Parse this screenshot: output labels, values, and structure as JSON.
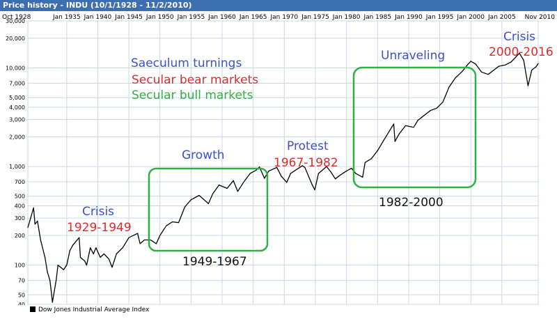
{
  "window": {
    "title": "Price history - INDU (10/1/1928 - 11/2/2010)"
  },
  "colors": {
    "titlebar": "#3c6fb0",
    "grid": "#c8d8ec",
    "line": "#000000",
    "box": "#2fb040",
    "annotation_blue": "#3b4fd0",
    "annotation_red": "#e02a2a",
    "annotation_green": "#2fb040",
    "annotation_black": "#111111"
  },
  "chart_data": {
    "type": "line",
    "title": "",
    "xlabel": "",
    "ylabel": "",
    "yscale": "log",
    "ylim": [
      40,
      30000
    ],
    "xlim": [
      1928.75,
      2010.84
    ],
    "grid": true,
    "x_tick_labels": [
      "Oct 1928",
      "Jan 1935",
      "Jan 1940",
      "Jan 1945",
      "Jan 1950",
      "Jan 1955",
      "Jan 1960",
      "Jan 1965",
      "Jan 1970",
      "Jan 1975",
      "Jan 1980",
      "Jan 1985",
      "Jan 1990",
      "Jan 1995",
      "Jan 2000",
      "Jan 2005",
      "Nov 2010"
    ],
    "x_tick_values": [
      1928.75,
      1935,
      1940,
      1945,
      1950,
      1955,
      1960,
      1965,
      1970,
      1975,
      1980,
      1985,
      1990,
      1995,
      2000,
      2005,
      2010.84
    ],
    "y_tick_labels": [
      "30,000",
      "20,000",
      "10,000",
      "7,000",
      "5,000",
      "4,000",
      "3,000",
      "2,000",
      "1,000",
      "700",
      "500",
      "400",
      "300",
      "200",
      "100",
      "70",
      "50",
      "40"
    ],
    "y_tick_values": [
      30000,
      20000,
      10000,
      7000,
      5000,
      4000,
      3000,
      2000,
      1000,
      700,
      500,
      400,
      300,
      200,
      100,
      70,
      50,
      40
    ],
    "series": [
      {
        "name": "Dow Jones Industrial Average Index",
        "x": [
          1928.75,
          1929.2,
          1929.67,
          1929.9,
          1930.3,
          1930.8,
          1931.5,
          1931.9,
          1932.3,
          1932.5,
          1932.7,
          1933.3,
          1933.6,
          1934.5,
          1935.0,
          1935.5,
          1936.0,
          1937.0,
          1937.2,
          1937.9,
          1938.2,
          1938.8,
          1939.3,
          1939.7,
          1940.4,
          1941.0,
          1941.8,
          1942.3,
          1943.0,
          1944.0,
          1945.0,
          1946.4,
          1946.8,
          1947.5,
          1948.5,
          1949.4,
          1950.0,
          1951.0,
          1952.0,
          1953.0,
          1954.0,
          1955.0,
          1956.3,
          1957.8,
          1958.5,
          1959.5,
          1960.8,
          1961.8,
          1962.5,
          1963.5,
          1964.5,
          1965.5,
          1966.0,
          1966.8,
          1967.5,
          1968.8,
          1969.5,
          1970.4,
          1971.0,
          1972.9,
          1973.3,
          1974.5,
          1974.9,
          1975.5,
          1976.8,
          1977.5,
          1978.2,
          1979.0,
          1980.0,
          1980.8,
          1981.5,
          1982.6,
          1983.0,
          1984.0,
          1985.0,
          1986.0,
          1987.6,
          1987.8,
          1988.5,
          1989.5,
          1990.8,
          1991.5,
          1992.5,
          1993.5,
          1994.5,
          1995.5,
          1996.5,
          1997.5,
          1998.6,
          1999.5,
          2000.0,
          2000.8,
          2001.7,
          2002.8,
          2003.5,
          2004.5,
          2005.5,
          2006.5,
          2007.8,
          2008.5,
          2009.2,
          2009.8,
          2010.5,
          2010.84
        ],
        "y": [
          240,
          300,
          381,
          260,
          280,
          180,
          120,
          85,
          70,
          55,
          42,
          70,
          100,
          90,
          100,
          140,
          160,
          190,
          120,
          110,
          100,
          150,
          130,
          150,
          120,
          130,
          115,
          95,
          130,
          150,
          190,
          210,
          165,
          180,
          180,
          165,
          200,
          250,
          275,
          270,
          390,
          460,
          510,
          420,
          530,
          650,
          600,
          720,
          560,
          700,
          850,
          920,
          990,
          760,
          900,
          980,
          800,
          690,
          850,
          1020,
          980,
          650,
          580,
          850,
          1000,
          880,
          750,
          820,
          900,
          960,
          850,
          780,
          1100,
          1200,
          1450,
          1850,
          2700,
          1800,
          2150,
          2600,
          2500,
          2950,
          3300,
          3700,
          3900,
          4500,
          6400,
          7900,
          9200,
          10800,
          11700,
          10900,
          9100,
          8600,
          9300,
          10400,
          10700,
          11500,
          14100,
          12000,
          6600,
          9500,
          10300,
          11100
        ]
      }
    ],
    "annotations": [
      "Saeculum turnings",
      "Secular bear markets",
      "Secular bull markets",
      "Crisis",
      "1929-1949",
      "Growth",
      "1949-1967",
      "Protest",
      "1967-1982",
      "Unraveling",
      "1982-2000",
      "Crisis",
      "2000-2016"
    ]
  },
  "labels": {
    "key_turnings": "Saeculum turnings",
    "key_bear": "Secular bear markets",
    "key_bull": "Secular bull markets",
    "crisis1_name": "Crisis",
    "crisis1_years": "1929-1949",
    "growth_name": "Growth",
    "growth_years": "1949-1967",
    "protest_name": "Protest",
    "protest_years": "1967-1982",
    "unraveling_name": "Unraveling",
    "unraveling_years": "1982-2000",
    "crisis2_name": "Crisis",
    "crisis2_years": "2000-2016"
  },
  "legend": {
    "label": "Dow Jones Industrial Average Index"
  }
}
